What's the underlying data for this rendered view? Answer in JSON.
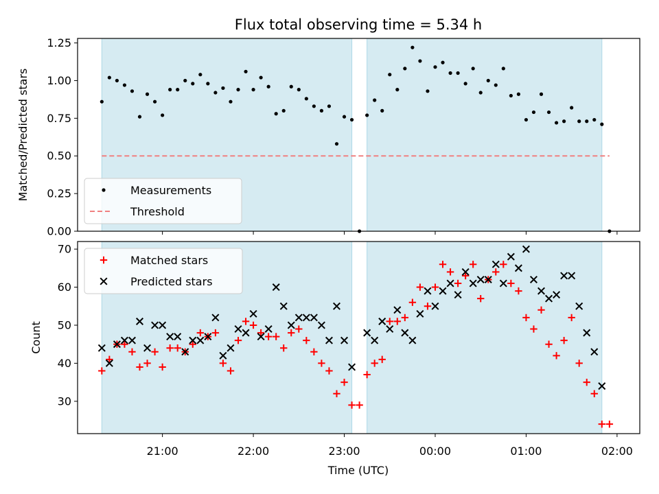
{
  "chart_data": {
    "title": "Flux total observing time = 5.34 h",
    "xlabel": "Time (UTC)",
    "x_ticks": [
      "21:00",
      "22:00",
      "23:00",
      "00:00",
      "01:00",
      "02:00"
    ],
    "colors": {
      "shade": "#add8e6",
      "measurements": "#000000",
      "threshold": "#f08080",
      "matched": "#ff0000",
      "predicted": "#000000"
    },
    "panels": [
      {
        "type": "scatter",
        "ylabel": "Matched/Predicted stars",
        "ylim": [
          0.0,
          1.28
        ],
        "y_ticks": [
          "0.00",
          "0.25",
          "0.50",
          "0.75",
          "1.00",
          "1.25"
        ],
        "legend": {
          "position": "lower-left",
          "entries": [
            "Measurements",
            "Threshold"
          ]
        },
        "threshold": 0.5,
        "shaded_spans": [
          [
            "20:20",
            "23:05"
          ],
          [
            "23:15",
            "01:50"
          ]
        ],
        "series": [
          {
            "name": "Measurements",
            "marker": "dot",
            "x": [
              "20:20",
              "20:25",
              "20:30",
              "20:35",
              "20:40",
              "20:45",
              "20:50",
              "20:55",
              "21:00",
              "21:05",
              "21:10",
              "21:15",
              "21:20",
              "21:25",
              "21:30",
              "21:35",
              "21:40",
              "21:45",
              "21:50",
              "21:55",
              "22:00",
              "22:05",
              "22:10",
              "22:15",
              "22:20",
              "22:25",
              "22:30",
              "22:35",
              "22:40",
              "22:45",
              "22:50",
              "22:55",
              "23:00",
              "23:05",
              "23:10",
              "23:15",
              "23:20",
              "23:25",
              "23:30",
              "23:35",
              "23:40",
              "23:45",
              "23:50",
              "23:55",
              "00:00",
              "00:05",
              "00:10",
              "00:15",
              "00:20",
              "00:25",
              "00:30",
              "00:35",
              "00:40",
              "00:45",
              "00:50",
              "00:55",
              "01:00",
              "01:05",
              "01:10",
              "01:15",
              "01:20",
              "01:25",
              "01:30",
              "01:35",
              "01:40",
              "01:45",
              "01:50",
              "01:55"
            ],
            "values": [
              0.86,
              1.02,
              1.0,
              0.97,
              0.93,
              0.76,
              0.91,
              0.86,
              0.77,
              0.94,
              0.94,
              1.0,
              0.98,
              1.04,
              0.98,
              0.92,
              0.95,
              0.86,
              0.94,
              1.06,
              0.94,
              1.02,
              0.96,
              0.78,
              0.8,
              0.96,
              0.94,
              0.88,
              0.83,
              0.8,
              0.83,
              0.58,
              0.76,
              0.74,
              0.0,
              0.77,
              0.87,
              0.8,
              1.04,
              0.94,
              1.08,
              1.22,
              1.13,
              0.93,
              1.09,
              1.12,
              1.05,
              1.05,
              0.98,
              1.08,
              0.92,
              1.0,
              0.97,
              1.08,
              0.9,
              0.91,
              0.74,
              0.79,
              0.91,
              0.79,
              0.72,
              0.73,
              0.82,
              0.73,
              0.73,
              0.74,
              0.71,
              0.0
            ]
          }
        ]
      },
      {
        "type": "scatter",
        "ylabel": "Count",
        "ylim": [
          21.5,
          72
        ],
        "y_ticks": [
          "30",
          "40",
          "50",
          "60",
          "70"
        ],
        "legend": {
          "position": "upper-left",
          "entries": [
            "Matched stars",
            "Predicted stars"
          ]
        },
        "shaded_spans": [
          [
            "20:20",
            "23:05"
          ],
          [
            "23:15",
            "01:50"
          ]
        ],
        "series": [
          {
            "name": "Matched stars",
            "marker": "plus",
            "x": [
              "20:20",
              "20:25",
              "20:30",
              "20:35",
              "20:40",
              "20:45",
              "20:50",
              "20:55",
              "21:00",
              "21:05",
              "21:10",
              "21:15",
              "21:20",
              "21:25",
              "21:30",
              "21:35",
              "21:40",
              "21:45",
              "21:50",
              "21:55",
              "22:00",
              "22:05",
              "22:10",
              "22:15",
              "22:20",
              "22:25",
              "22:30",
              "22:35",
              "22:40",
              "22:45",
              "22:50",
              "22:55",
              "23:00",
              "23:05",
              "23:10",
              "23:15",
              "23:20",
              "23:25",
              "23:30",
              "23:35",
              "23:40",
              "23:45",
              "23:50",
              "23:55",
              "00:00",
              "00:05",
              "00:10",
              "00:15",
              "00:20",
              "00:25",
              "00:30",
              "00:35",
              "00:40",
              "00:45",
              "00:50",
              "00:55",
              "01:00",
              "01:05",
              "01:10",
              "01:15",
              "01:20",
              "01:25",
              "01:30",
              "01:35",
              "01:40",
              "01:45",
              "01:50",
              "01:55"
            ],
            "values": [
              38,
              41,
              45,
              45,
              43,
              39,
              40,
              43,
              39,
              44,
              44,
              43,
              45,
              48,
              47,
              48,
              40,
              38,
              46,
              51,
              50,
              48,
              47,
              47,
              44,
              48,
              49,
              46,
              43,
              40,
              38,
              32,
              35,
              29,
              29,
              37,
              40,
              41,
              51,
              51,
              52,
              56,
              60,
              55,
              60,
              66,
              64,
              61,
              63,
              66,
              57,
              62,
              64,
              66,
              61,
              59,
              52,
              49,
              54,
              45,
              42,
              46,
              52,
              40,
              35,
              32,
              24,
              24
            ]
          },
          {
            "name": "Predicted stars",
            "marker": "x",
            "x": [
              "20:20",
              "20:25",
              "20:30",
              "20:35",
              "20:40",
              "20:45",
              "20:50",
              "20:55",
              "21:00",
              "21:05",
              "21:10",
              "21:15",
              "21:20",
              "21:25",
              "21:30",
              "21:35",
              "21:40",
              "21:45",
              "21:50",
              "21:55",
              "22:00",
              "22:05",
              "22:10",
              "22:15",
              "22:20",
              "22:25",
              "22:30",
              "22:35",
              "22:40",
              "22:45",
              "22:50",
              "22:55",
              "23:00",
              "23:05",
              "23:15",
              "23:20",
              "23:25",
              "23:30",
              "23:35",
              "23:40",
              "23:45",
              "23:50",
              "23:55",
              "00:00",
              "00:05",
              "00:10",
              "00:15",
              "00:20",
              "00:25",
              "00:30",
              "00:35",
              "00:40",
              "00:45",
              "00:50",
              "00:55",
              "01:00",
              "01:05",
              "01:10",
              "01:15",
              "01:20",
              "01:25",
              "01:30",
              "01:35",
              "01:40",
              "01:45",
              "01:50"
            ],
            "values": [
              44,
              40,
              45,
              46,
              46,
              51,
              44,
              50,
              50,
              47,
              47,
              43,
              46,
              46,
              47,
              52,
              42,
              44,
              49,
              48,
              53,
              47,
              49,
              60,
              55,
              50,
              52,
              52,
              52,
              50,
              46,
              55,
              46,
              39,
              48,
              46,
              51,
              49,
              54,
              48,
              46,
              53,
              59,
              55,
              59,
              61,
              58,
              64,
              61,
              62,
              62,
              66,
              61,
              68,
              65,
              70,
              62,
              59,
              57,
              58,
              63,
              63,
              55,
              48,
              43,
              34
            ]
          }
        ]
      }
    ]
  }
}
